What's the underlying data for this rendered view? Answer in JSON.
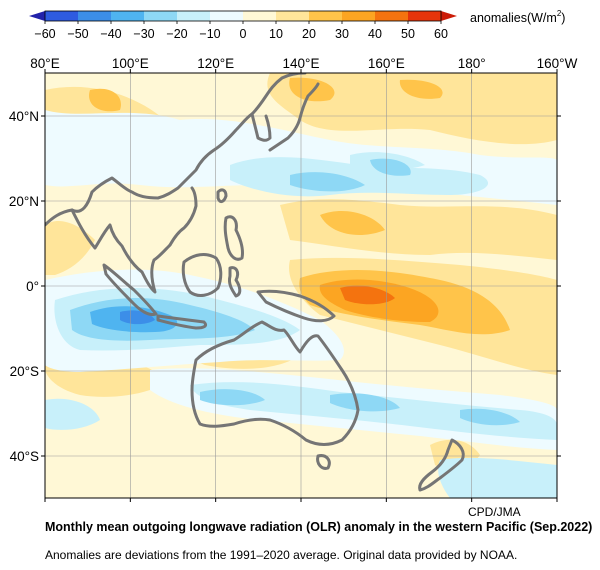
{
  "colorbar": {
    "ticks": [
      "-60",
      "-50",
      "-40",
      "-30",
      "-20",
      "-10",
      "0",
      "10",
      "20",
      "30",
      "40",
      "50",
      "60"
    ],
    "unit": "anomalies(W/m²)",
    "colors": [
      "#2e5be0",
      "#3c8ee8",
      "#4fb4f0",
      "#8ed8f5",
      "#c8f0fa",
      "#eefbff",
      "#fff8d6",
      "#ffe59a",
      "#ffc44a",
      "#fca522",
      "#f4730f",
      "#e5340a"
    ]
  },
  "map": {
    "lon_labels": [
      "80°E",
      "100°E",
      "120°E",
      "140°E",
      "160°E",
      "180°",
      "160°W"
    ],
    "lat_labels": [
      "40°N",
      "20°N",
      "0°",
      "20°S",
      "40°S"
    ],
    "land_color": "#757575"
  },
  "credit": "CPD/JMA",
  "caption": {
    "title": "Monthly mean outgoing longwave radiation (OLR) anomaly in the western Pacific (Sep.2022)",
    "note": "Anomalies are deviations from the 1991–2020 average. Original data provided by NOAA."
  }
}
